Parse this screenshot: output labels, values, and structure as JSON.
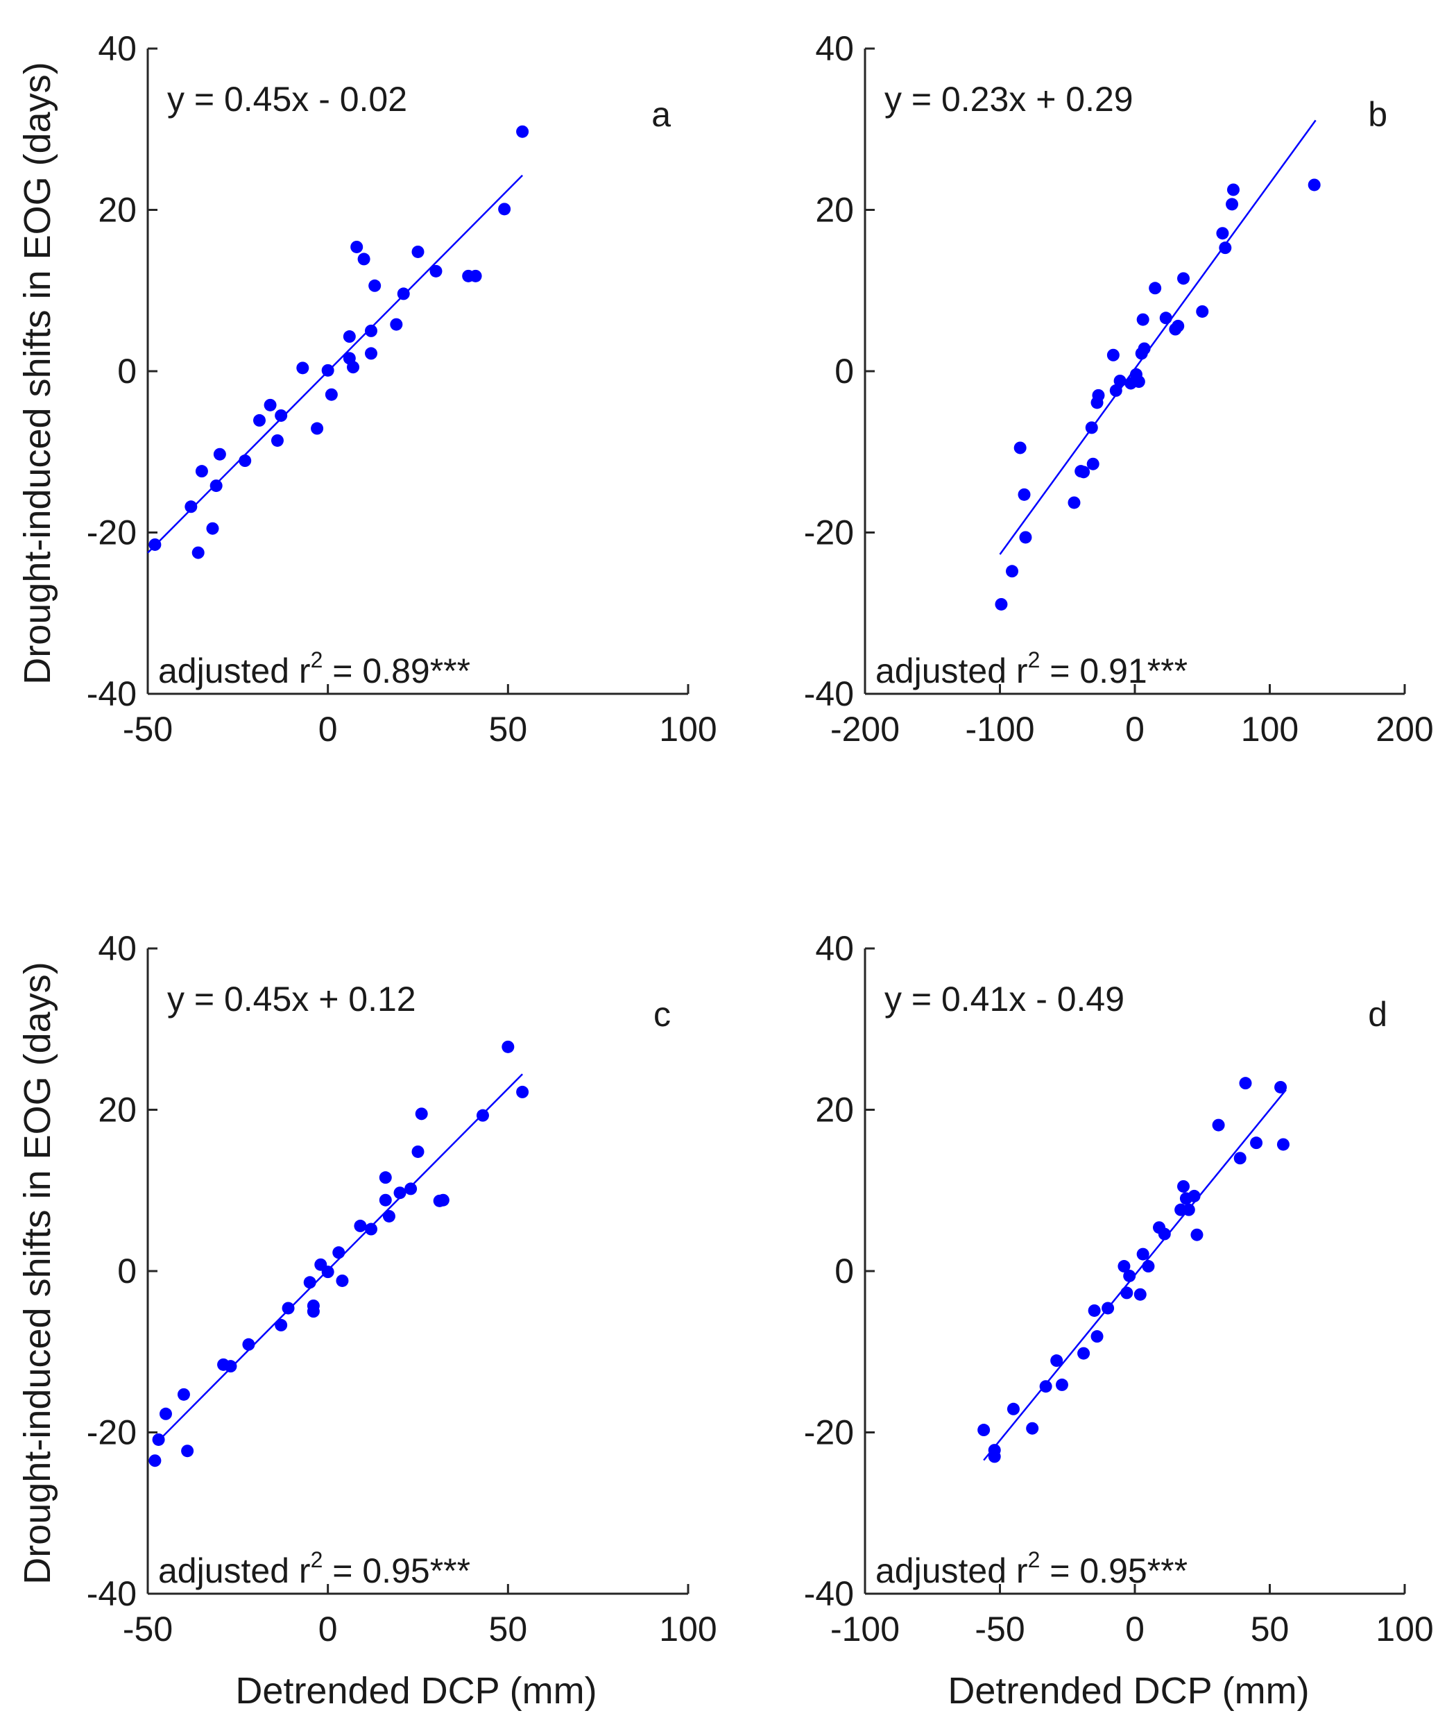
{
  "ylabel": "Drought-induced shifts in EOG (days)",
  "xlabel": "Detrended DCP (mm)",
  "chart_data": [
    {
      "type": "scatter",
      "panel": "a",
      "equation": "y = 0.45x - 0.02",
      "r2_prefix": "adjusted r",
      "r2_sup": "2",
      "r2_suffix": " = 0.89***",
      "xlim": [
        -50,
        100
      ],
      "ylim": [
        -40,
        40
      ],
      "xticks": [
        -50,
        0,
        50,
        100
      ],
      "yticks": [
        40,
        20,
        0,
        -20,
        -40
      ],
      "xtick_labels": [
        "-50",
        "0",
        "50",
        "100"
      ],
      "ytick_labels": [
        "40",
        "20",
        "0",
        "-20",
        "-40"
      ],
      "fit": {
        "slope": 0.45,
        "intercept": -0.02,
        "x_range": [
          -50,
          54
        ]
      },
      "x": [
        -48,
        -38,
        -36,
        -35,
        -32,
        -31,
        -30,
        -23,
        -19,
        -16,
        -14,
        -13,
        -7,
        -3,
        0,
        1,
        6,
        6,
        7,
        8,
        10,
        12,
        12,
        13,
        19,
        21,
        25,
        30,
        39,
        41,
        49,
        54
      ],
      "y": [
        -21.5,
        -16.8,
        -22.5,
        -12.4,
        -19.5,
        -14.2,
        -10.3,
        -11.1,
        -6.1,
        -4.2,
        -8.6,
        -5.5,
        0.4,
        -7.1,
        0.1,
        -2.9,
        4.3,
        1.6,
        0.5,
        15.4,
        13.9,
        2.2,
        5.0,
        10.6,
        5.8,
        9.6,
        14.8,
        12.4,
        11.8,
        11.8,
        20.1,
        29.7
      ]
    },
    {
      "type": "scatter",
      "panel": "b",
      "equation": "y = 0.23x + 0.29",
      "r2_prefix": "adjusted r",
      "r2_sup": "2",
      "r2_suffix": " = 0.91***",
      "xlim": [
        -200,
        200
      ],
      "ylim": [
        -40,
        40
      ],
      "xticks": [
        -200,
        -100,
        0,
        100,
        200
      ],
      "yticks": [
        40,
        20,
        0,
        -20,
        -40
      ],
      "xtick_labels": [
        "-200",
        "-100",
        "0",
        "100",
        "200"
      ],
      "ytick_labels": [
        "40",
        "20",
        "0",
        "-20",
        "-40"
      ],
      "fit": {
        "slope": 0.23,
        "intercept": 0.29,
        "x_range": [
          -100,
          134
        ]
      },
      "x": [
        -99,
        -91,
        -85,
        -82,
        -81,
        -45,
        -40,
        -32,
        -31,
        -28,
        -27,
        -38,
        -16,
        -14,
        -11,
        -3,
        1,
        3,
        5,
        6,
        7,
        15,
        23,
        30,
        32,
        36,
        50,
        65,
        67,
        72,
        73,
        133
      ],
      "y": [
        -28.9,
        -24.8,
        -9.5,
        -15.3,
        -20.6,
        -16.3,
        -12.4,
        -7.0,
        -11.5,
        -3.9,
        -3.0,
        -12.5,
        2.0,
        -2.4,
        -1.2,
        -1.5,
        -0.4,
        -1.3,
        2.2,
        6.4,
        2.8,
        10.3,
        6.6,
        5.2,
        5.6,
        11.5,
        7.4,
        17.1,
        15.3,
        20.7,
        22.5,
        23.1
      ]
    },
    {
      "type": "scatter",
      "panel": "c",
      "equation": "y = 0.45x + 0.12",
      "r2_prefix": "adjusted r",
      "r2_sup": "2",
      "r2_suffix": " = 0.95***",
      "xlim": [
        -50,
        100
      ],
      "ylim": [
        -40,
        40
      ],
      "xticks": [
        -50,
        0,
        50,
        100
      ],
      "yticks": [
        40,
        20,
        0,
        -20,
        -40
      ],
      "xtick_labels": [
        "-50",
        "0",
        "50",
        "100"
      ],
      "ytick_labels": [
        "40",
        "20",
        "0",
        "-20",
        "-40"
      ],
      "fit": {
        "slope": 0.45,
        "intercept": 0.12,
        "x_range": [
          -48,
          54
        ]
      },
      "x": [
        -48,
        -47,
        -45,
        -40,
        -39,
        -29,
        -27,
        -22,
        -13,
        -11,
        -5,
        -4,
        -4,
        -2,
        0,
        3,
        4,
        9,
        12,
        16,
        16,
        17,
        20,
        23,
        25,
        26,
        31,
        32,
        43,
        50,
        54
      ],
      "y": [
        -23.5,
        -20.9,
        -17.7,
        -15.3,
        -22.3,
        -11.6,
        -11.8,
        -9.1,
        -6.7,
        -4.6,
        -1.4,
        -4.3,
        -5.0,
        0.8,
        -0.1,
        2.3,
        -1.2,
        5.6,
        5.2,
        11.6,
        8.8,
        6.8,
        9.7,
        10.2,
        14.8,
        19.5,
        8.7,
        8.8,
        19.3,
        27.8,
        22.2
      ]
    },
    {
      "type": "scatter",
      "panel": "d",
      "equation": "y = 0.41x - 0.49",
      "r2_prefix": "adjusted r",
      "r2_sup": "2",
      "r2_suffix": " = 0.95***",
      "xlim": [
        -100,
        100
      ],
      "ylim": [
        -40,
        40
      ],
      "xticks": [
        -100,
        -50,
        0,
        50,
        100
      ],
      "yticks": [
        40,
        20,
        0,
        -20,
        -40
      ],
      "xtick_labels": [
        "-100",
        "-50",
        "0",
        "50",
        "100"
      ],
      "ytick_labels": [
        "40",
        "20",
        "0",
        "-20",
        "-40"
      ],
      "fit": {
        "slope": 0.41,
        "intercept": -0.49,
        "x_range": [
          -56,
          56
        ]
      },
      "x": [
        -56,
        -52,
        -52,
        -45,
        -38,
        -33,
        -29,
        -27,
        -19,
        -15,
        -14,
        -10,
        -4,
        -3,
        -2,
        2,
        3,
        5,
        9,
        11,
        17,
        18,
        19,
        20,
        22,
        23,
        31,
        39,
        41,
        45,
        54,
        55
      ],
      "y": [
        -19.7,
        -22.2,
        -23.0,
        -17.1,
        -19.5,
        -14.3,
        -11.1,
        -14.1,
        -10.2,
        -4.9,
        -8.1,
        -4.6,
        0.6,
        -2.7,
        -0.6,
        -2.9,
        2.1,
        0.6,
        5.4,
        4.6,
        7.6,
        10.5,
        9.0,
        7.6,
        9.3,
        4.5,
        18.1,
        14.0,
        23.3,
        15.9,
        22.8,
        15.7
      ]
    }
  ]
}
